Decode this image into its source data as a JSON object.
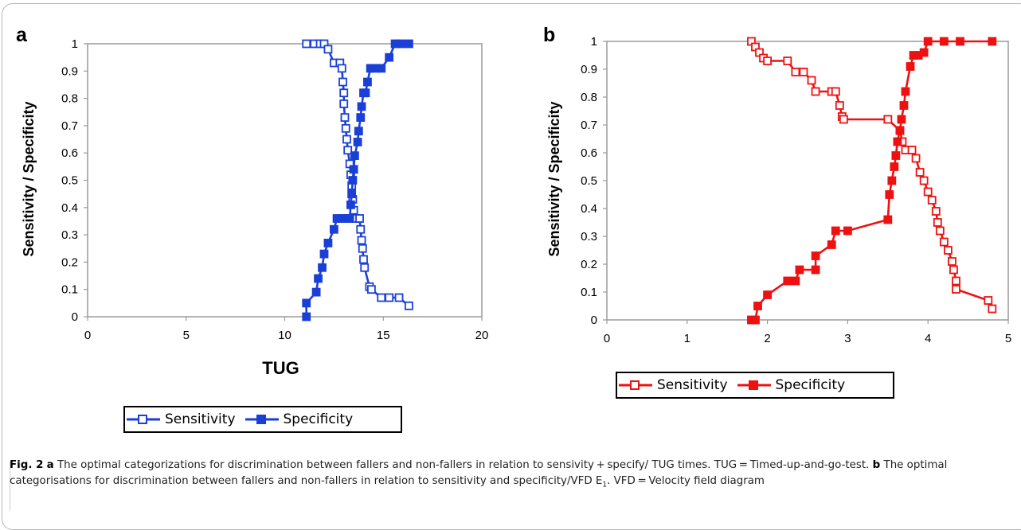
{
  "figure": {
    "caption": {
      "label": "Fig. 2",
      "part_a_letter": "a",
      "part_a_text": "The optimal categorizations for discrimination between fallers and non-fallers in relation to sensivity + specify/ TUG times. TUG = Timed-up-and-go-test.",
      "part_b_letter": "b",
      "part_b_text_1": "The optimal categorisations for discrimination between fallers and non-fallers in relation to sensitivity and specificity/VFD E",
      "part_b_sub": "1",
      "part_b_text_2": ". VFD = Velocity field diagram"
    }
  },
  "chart_data": [
    {
      "panel": "a",
      "type": "line",
      "xlabel": "TUG",
      "ylabel": "Sensitivity / Specificity",
      "xlim": [
        0,
        20
      ],
      "ylim": [
        0,
        1
      ],
      "xticks": [
        "0",
        "5",
        "10",
        "15",
        "20"
      ],
      "yticks": [
        "0",
        "0.1",
        "0.2",
        "0.3",
        "0.4",
        "0.5",
        "0.6",
        "0.7",
        "0.8",
        "0.9",
        "1"
      ],
      "grid": false,
      "legend_position": "bottom",
      "color": "#1a3fd6",
      "series": [
        {
          "name": "Sensitivity",
          "marker": "open-square",
          "points": [
            [
              11.1,
              1.0
            ],
            [
              11.5,
              1.0
            ],
            [
              11.8,
              1.0
            ],
            [
              12.0,
              1.0
            ],
            [
              12.2,
              0.98
            ],
            [
              12.5,
              0.93
            ],
            [
              12.8,
              0.93
            ],
            [
              12.9,
              0.91
            ],
            [
              12.95,
              0.86
            ],
            [
              13.0,
              0.82
            ],
            [
              13.0,
              0.78
            ],
            [
              13.05,
              0.73
            ],
            [
              13.1,
              0.69
            ],
            [
              13.15,
              0.65
            ],
            [
              13.2,
              0.61
            ],
            [
              13.3,
              0.56
            ],
            [
              13.35,
              0.52
            ],
            [
              13.4,
              0.48
            ],
            [
              13.45,
              0.43
            ],
            [
              13.5,
              0.39
            ],
            [
              13.6,
              0.36
            ],
            [
              13.8,
              0.36
            ],
            [
              13.85,
              0.32
            ],
            [
              13.9,
              0.28
            ],
            [
              13.95,
              0.25
            ],
            [
              14.0,
              0.21
            ],
            [
              14.05,
              0.18
            ],
            [
              14.3,
              0.11
            ],
            [
              14.4,
              0.1
            ],
            [
              14.9,
              0.07
            ],
            [
              15.3,
              0.07
            ],
            [
              15.8,
              0.07
            ],
            [
              16.3,
              0.04
            ]
          ]
        },
        {
          "name": "Specificity",
          "marker": "filled-square",
          "points": [
            [
              11.1,
              0.0
            ],
            [
              11.1,
              0.05
            ],
            [
              11.6,
              0.09
            ],
            [
              11.7,
              0.14
            ],
            [
              11.9,
              0.18
            ],
            [
              12.0,
              0.23
            ],
            [
              12.2,
              0.27
            ],
            [
              12.5,
              0.32
            ],
            [
              12.65,
              0.36
            ],
            [
              12.9,
              0.36
            ],
            [
              13.1,
              0.36
            ],
            [
              13.3,
              0.36
            ],
            [
              13.35,
              0.41
            ],
            [
              13.4,
              0.45
            ],
            [
              13.45,
              0.5
            ],
            [
              13.5,
              0.54
            ],
            [
              13.55,
              0.59
            ],
            [
              13.7,
              0.64
            ],
            [
              13.75,
              0.68
            ],
            [
              13.85,
              0.73
            ],
            [
              13.9,
              0.77
            ],
            [
              14.0,
              0.82
            ],
            [
              14.1,
              0.82
            ],
            [
              14.2,
              0.86
            ],
            [
              14.35,
              0.91
            ],
            [
              14.6,
              0.91
            ],
            [
              14.9,
              0.91
            ],
            [
              15.3,
              0.95
            ],
            [
              15.6,
              1.0
            ],
            [
              15.9,
              1.0
            ],
            [
              16.3,
              1.0
            ]
          ]
        }
      ]
    },
    {
      "panel": "b",
      "type": "line",
      "xlabel": "",
      "ylabel": "Sensitivity / Specificity",
      "xlim": [
        0,
        5
      ],
      "ylim": [
        0,
        1
      ],
      "xticks": [
        "0",
        "1",
        "2",
        "3",
        "4",
        "5"
      ],
      "yticks": [
        "0",
        "0.1",
        "0.2",
        "0.3",
        "0.4",
        "0.5",
        "0.6",
        "0.7",
        "0.8",
        "0.9",
        "1"
      ],
      "grid": false,
      "legend_position": "bottom",
      "color": "#ee1111",
      "series": [
        {
          "name": "Sensitivity",
          "marker": "open-square",
          "points": [
            [
              1.8,
              1.0
            ],
            [
              1.85,
              0.98
            ],
            [
              1.9,
              0.96
            ],
            [
              1.95,
              0.94
            ],
            [
              2.0,
              0.93
            ],
            [
              2.25,
              0.93
            ],
            [
              2.35,
              0.89
            ],
            [
              2.45,
              0.89
            ],
            [
              2.55,
              0.86
            ],
            [
              2.6,
              0.82
            ],
            [
              2.8,
              0.82
            ],
            [
              2.85,
              0.82
            ],
            [
              2.9,
              0.77
            ],
            [
              2.93,
              0.73
            ],
            [
              2.95,
              0.72
            ],
            [
              3.5,
              0.72
            ],
            [
              3.65,
              0.68
            ],
            [
              3.68,
              0.64
            ],
            [
              3.72,
              0.61
            ],
            [
              3.8,
              0.61
            ],
            [
              3.85,
              0.58
            ],
            [
              3.9,
              0.53
            ],
            [
              3.95,
              0.5
            ],
            [
              4.0,
              0.46
            ],
            [
              4.05,
              0.43
            ],
            [
              4.1,
              0.39
            ],
            [
              4.12,
              0.35
            ],
            [
              4.15,
              0.32
            ],
            [
              4.2,
              0.28
            ],
            [
              4.25,
              0.25
            ],
            [
              4.3,
              0.21
            ],
            [
              4.32,
              0.18
            ],
            [
              4.35,
              0.14
            ],
            [
              4.35,
              0.11
            ],
            [
              4.75,
              0.07
            ],
            [
              4.8,
              0.04
            ]
          ]
        },
        {
          "name": "Specificity",
          "marker": "filled-square",
          "points": [
            [
              1.8,
              0.0
            ],
            [
              1.85,
              0.0
            ],
            [
              1.88,
              0.05
            ],
            [
              2.0,
              0.09
            ],
            [
              2.25,
              0.14
            ],
            [
              2.35,
              0.14
            ],
            [
              2.4,
              0.18
            ],
            [
              2.6,
              0.18
            ],
            [
              2.6,
              0.23
            ],
            [
              2.8,
              0.27
            ],
            [
              2.85,
              0.32
            ],
            [
              3.0,
              0.32
            ],
            [
              3.5,
              0.36
            ],
            [
              3.52,
              0.45
            ],
            [
              3.55,
              0.5
            ],
            [
              3.58,
              0.55
            ],
            [
              3.6,
              0.59
            ],
            [
              3.62,
              0.64
            ],
            [
              3.65,
              0.68
            ],
            [
              3.67,
              0.72
            ],
            [
              3.7,
              0.77
            ],
            [
              3.72,
              0.82
            ],
            [
              3.78,
              0.91
            ],
            [
              3.82,
              0.95
            ],
            [
              3.88,
              0.95
            ],
            [
              3.95,
              0.96
            ],
            [
              4.0,
              1.0
            ],
            [
              4.2,
              1.0
            ],
            [
              4.4,
              1.0
            ],
            [
              4.8,
              1.0
            ]
          ]
        }
      ]
    }
  ]
}
